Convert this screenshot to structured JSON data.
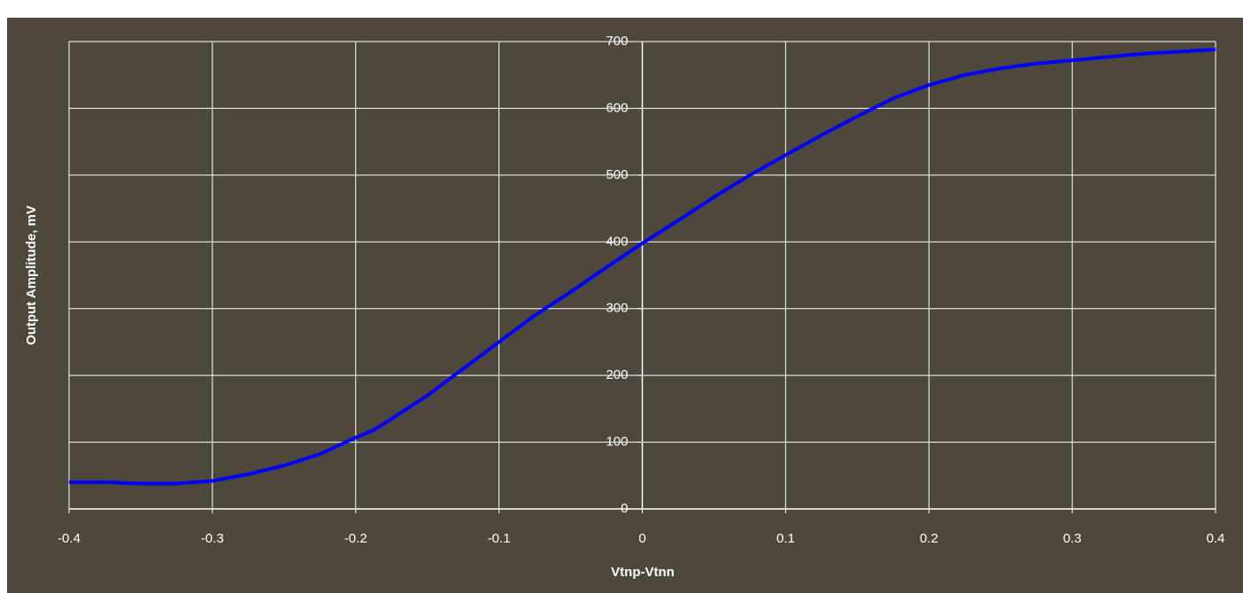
{
  "chart_data": {
    "type": "line",
    "x_label": "Vtnp-Vtnn",
    "y_label": "Output Amplitude, mV",
    "x": [
      -0.4,
      -0.375,
      -0.35,
      -0.325,
      -0.3,
      -0.275,
      -0.25,
      -0.225,
      -0.2,
      -0.1875,
      -0.175,
      -0.15,
      -0.125,
      -0.1,
      -0.075,
      -0.05,
      -0.025,
      0,
      0.025,
      0.05,
      0.075,
      0.1,
      0.125,
      0.15,
      0.175,
      0.2,
      0.225,
      0.25,
      0.275,
      0.3,
      0.325,
      0.35,
      0.375,
      0.4
    ],
    "series": [
      {
        "color": "#0000ff",
        "values": [
          40,
          40,
          38,
          38,
          42,
          52,
          65,
          82,
          107,
          118,
          135,
          170,
          210,
          250,
          290,
          325,
          362,
          398,
          432,
          467,
          500,
          530,
          560,
          588,
          615,
          635,
          650,
          660,
          667,
          672,
          677,
          682,
          685,
          688
        ]
      }
    ],
    "xlim": [
      -0.4,
      0.4
    ],
    "xticks": [
      -0.4,
      -0.3,
      -0.2,
      -0.1,
      0,
      0.1,
      0.2,
      0.3,
      0.4
    ],
    "ylim": [
      0,
      700
    ],
    "yticks": [
      0,
      100,
      200,
      300,
      400,
      500,
      600,
      700
    ],
    "grid": true
  }
}
